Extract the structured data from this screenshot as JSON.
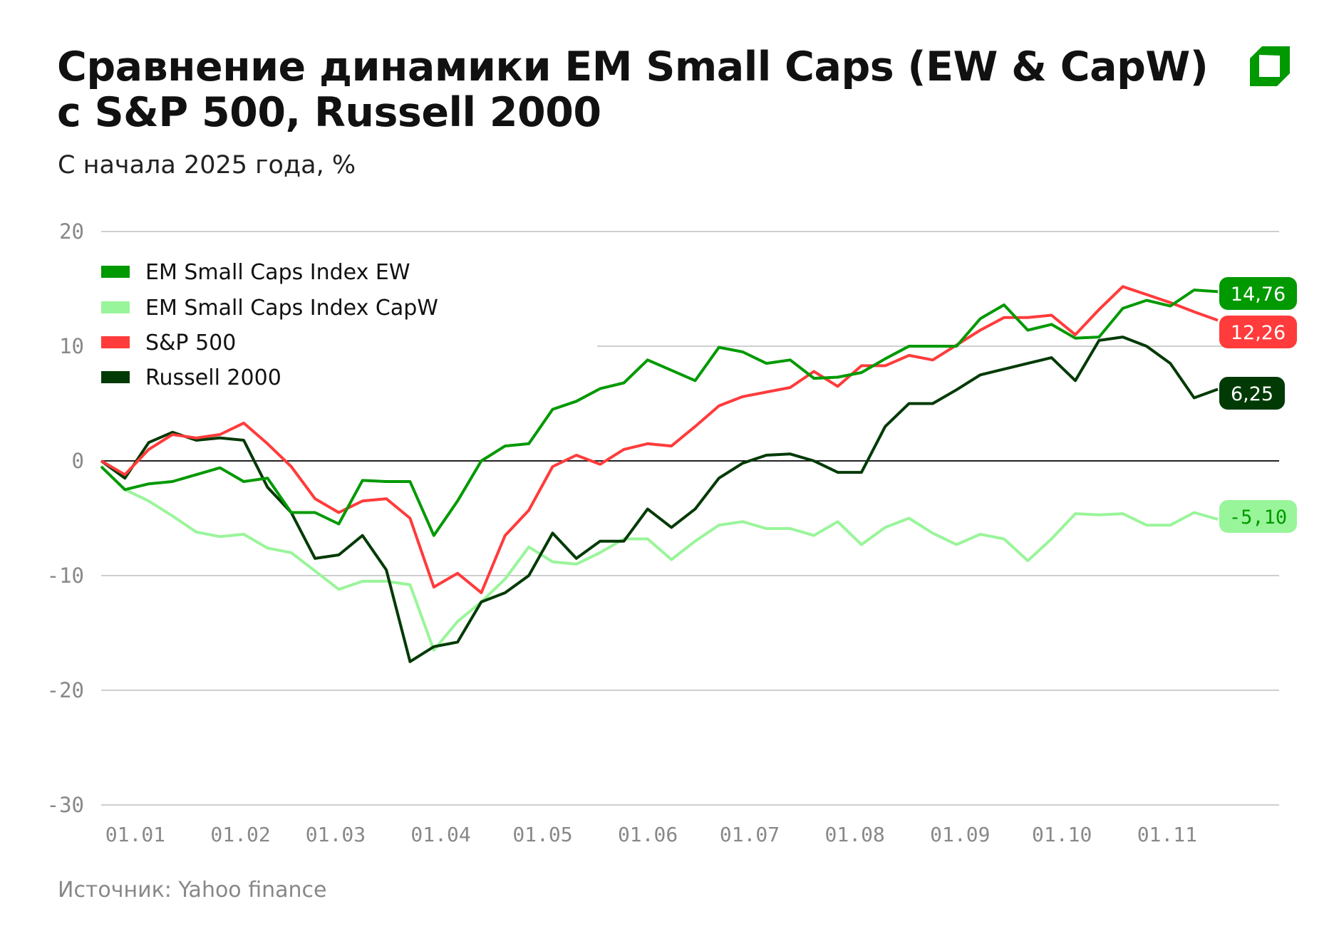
{
  "header": {
    "title_line1": "Сравнение динамики EM Small Caps (EW & CapW)",
    "title_line2": "с S&P 500, Russell 2000",
    "subtitle": "С начала 2025 года, %"
  },
  "footer": {
    "source": "Источник: Yahoo finance"
  },
  "logo": {
    "color": "#009900"
  },
  "chart_data": {
    "type": "line",
    "title": "Сравнение динамики EM Small Caps (EW & CapW) с S&P 500, Russell 2000",
    "subtitle": "С начала 2025 года, %",
    "xlabel": "",
    "ylabel": "",
    "ylim": [
      -30,
      20
    ],
    "yticks": [
      20,
      10,
      0,
      -10,
      -20,
      -30
    ],
    "ytick_labels": [
      "20",
      "10",
      "0",
      "-10",
      "-20",
      "-30"
    ],
    "xlim": [
      "2024-12-31",
      "2025-11-25"
    ],
    "xtick_dates": [
      "2025-01-01",
      "2025-02-01",
      "2025-03-01",
      "2025-04-01",
      "2025-05-01",
      "2025-06-01",
      "2025-07-01",
      "2025-08-01",
      "2025-09-01",
      "2025-10-01",
      "2025-11-01"
    ],
    "xtick_labels": [
      "01.01",
      "01.02",
      "01.03",
      "01.04",
      "01.05",
      "01.06",
      "01.07",
      "01.08",
      "01.09",
      "01.10",
      "01.11"
    ],
    "grid": true,
    "legend_position": "top-left",
    "x": [
      "2024-12-31",
      "2025-01-07",
      "2025-01-14",
      "2025-01-21",
      "2025-01-28",
      "2025-02-04",
      "2025-02-11",
      "2025-02-18",
      "2025-02-25",
      "2025-03-04",
      "2025-03-11",
      "2025-03-18",
      "2025-03-25",
      "2025-04-01",
      "2025-04-08",
      "2025-04-15",
      "2025-04-22",
      "2025-04-29",
      "2025-05-06",
      "2025-05-13",
      "2025-05-20",
      "2025-05-27",
      "2025-06-03",
      "2025-06-10",
      "2025-06-17",
      "2025-06-24",
      "2025-07-01",
      "2025-07-08",
      "2025-07-15",
      "2025-07-22",
      "2025-07-29",
      "2025-08-05",
      "2025-08-12",
      "2025-08-19",
      "2025-08-26",
      "2025-09-02",
      "2025-09-09",
      "2025-09-16",
      "2025-09-23",
      "2025-09-30",
      "2025-10-07",
      "2025-10-14",
      "2025-10-21",
      "2025-10-28",
      "2025-11-04",
      "2025-11-11",
      "2025-11-18",
      "2025-11-25"
    ],
    "series": [
      {
        "name": "EM Small Caps Index EW",
        "color": "#009900",
        "end_label": "14,76",
        "label_text_color": "#ffffff",
        "label_bg": "#009900",
        "values": [
          -0.5,
          -2.5,
          -2,
          -1.8,
          -1.2,
          -0.6,
          -1.8,
          -1.5,
          -4.5,
          -4.5,
          -5.5,
          -1.7,
          -1.8,
          -1.8,
          -6.5,
          -3.5,
          0,
          1.3,
          1.5,
          4.5,
          5.2,
          6.3,
          6.8,
          8.8,
          7.9,
          7.0,
          9.9,
          9.5,
          8.5,
          8.8,
          7.2,
          7.3,
          7.7,
          8.9,
          10.0,
          10.0,
          10.0,
          12.4,
          13.6,
          11.4,
          11.9,
          10.7,
          10.8,
          13.3,
          14.0,
          13.5,
          14.9,
          14.76
        ]
      },
      {
        "name": "EM Small Caps Index CapW",
        "color": "#99f59a",
        "end_label": "-5,10",
        "label_text_color": "#009900",
        "label_bg": "#99f59a",
        "values": [
          -0.5,
          -2.5,
          -3.5,
          -4.8,
          -6.2,
          -6.6,
          -6.4,
          -7.6,
          -8.0,
          -9.6,
          -11.2,
          -10.5,
          -10.5,
          -10.8,
          -16.5,
          -14,
          -12.3,
          -10.3,
          -7.5,
          -8.8,
          -9.0,
          -8.0,
          -6.8,
          -6.8,
          -8.6,
          -7.0,
          -5.6,
          -5.3,
          -5.9,
          -5.9,
          -6.5,
          -5.3,
          -7.3,
          -5.8,
          -5.0,
          -6.3,
          -7.3,
          -6.4,
          -6.8,
          -8.7,
          -6.8,
          -4.6,
          -4.7,
          -4.6,
          -5.6,
          -5.6,
          -4.5,
          -5.1
        ]
      },
      {
        "name": "S&P 500",
        "color": "#ff3b3b",
        "end_label": "12,26",
        "label_text_color": "#ffffff",
        "label_bg": "#ff3b3b",
        "values": [
          0,
          -1.2,
          1.0,
          2.3,
          2.0,
          2.3,
          3.3,
          1.5,
          -0.5,
          -3.3,
          -4.5,
          -3.5,
          -3.3,
          -5.0,
          -11.0,
          -9.8,
          -11.5,
          -6.5,
          -4.3,
          -0.5,
          0.5,
          -0.3,
          1.0,
          1.5,
          1.3,
          3.0,
          4.8,
          5.6,
          6.0,
          6.4,
          7.8,
          6.5,
          8.3,
          8.3,
          9.2,
          8.8,
          10.1,
          11.4,
          12.5,
          12.5,
          12.7,
          11.0,
          13.2,
          15.2,
          14.5,
          13.8,
          13.0,
          12.26
        ]
      },
      {
        "name": "Russell 2000",
        "color": "#013a05",
        "end_label": "6,25",
        "label_text_color": "#ffffff",
        "label_bg": "#013a05",
        "values": [
          0,
          -1.5,
          1.6,
          2.5,
          1.8,
          2.0,
          1.8,
          -2.3,
          -4.5,
          -8.5,
          -8.2,
          -6.5,
          -9.5,
          -17.5,
          -16.2,
          -15.8,
          -12.3,
          -11.5,
          -10.0,
          -6.3,
          -8.5,
          -7.0,
          -7.0,
          -4.2,
          -5.8,
          -4.2,
          -1.5,
          -0.2,
          0.5,
          0.6,
          0,
          -1.0,
          -1.0,
          3.0,
          5.0,
          5.0,
          6.2,
          7.5,
          8.0,
          8.5,
          9.0,
          7.0,
          10.5,
          10.8,
          10.0,
          8.5,
          5.5,
          6.25
        ]
      }
    ]
  }
}
